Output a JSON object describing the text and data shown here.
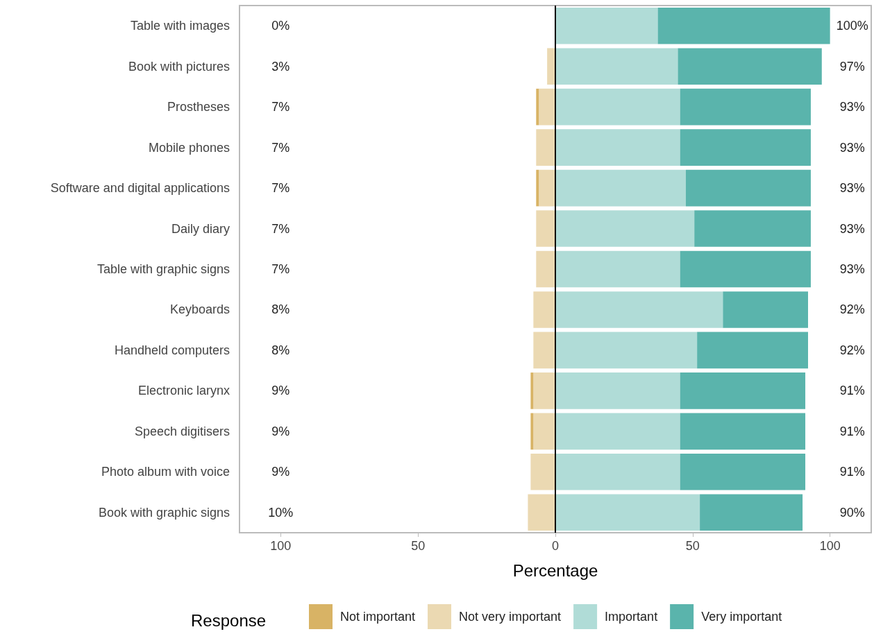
{
  "chart_data": {
    "type": "bar",
    "orientation": "horizontal",
    "stacked": true,
    "xlabel": "Percentage",
    "legend_title": "Response",
    "legend": "bottom",
    "grid": false,
    "categories": [
      "Table with images",
      "Book with pictures",
      "Prostheses",
      "Mobile phones",
      "Software and digital applications",
      "Daily diary",
      "Table with graphic signs",
      "Keyboards",
      "Handheld computers",
      "Electronic larynx",
      "Speech digitisers",
      "Photo album with voice",
      "Book with graphic signs"
    ],
    "xlim": [
      -115,
      115
    ],
    "xticks": [
      {
        "value": -100,
        "label": "100"
      },
      {
        "value": -50,
        "label": "50"
      },
      0,
      50,
      100
    ],
    "series": [
      {
        "name": "Not very important",
        "color": "#ebd9b2",
        "values": [
          0,
          -3,
          -6,
          -7,
          -6,
          -7,
          -7,
          -8,
          -8,
          -8,
          -8,
          -9,
          -10
        ]
      },
      {
        "name": "Not important",
        "color": "#d8b365",
        "values": [
          0,
          0,
          -1,
          0,
          -1,
          0,
          0,
          0,
          0,
          -1,
          -1,
          0,
          0
        ]
      },
      {
        "name": "Important",
        "color": "#b0dcd7",
        "values": [
          37.3,
          44.6,
          45.4,
          45.4,
          47.5,
          50.6,
          45.4,
          61,
          51.6,
          45.4,
          45.4,
          45.4,
          52.6
        ]
      },
      {
        "name": "Very important",
        "color": "#5ab4ac",
        "values": [
          62.7,
          52.4,
          47.6,
          47.6,
          45.5,
          42.4,
          47.6,
          31,
          40.4,
          45.6,
          45.6,
          45.6,
          37.4
        ]
      }
    ],
    "ref_lines": [
      {
        "axis": "x",
        "value": 0,
        "color": "#000000"
      }
    ],
    "annotations": [
      "0%",
      "3%",
      "7%",
      "7%",
      "7%",
      "7%",
      "7%",
      "8%",
      "8%",
      "9%",
      "9%",
      "9%",
      "10%",
      "100%",
      "97%",
      "93%",
      "93%",
      "93%",
      "93%",
      "93%",
      "92%",
      "92%",
      "91%",
      "91%",
      "91%",
      "90%"
    ]
  }
}
